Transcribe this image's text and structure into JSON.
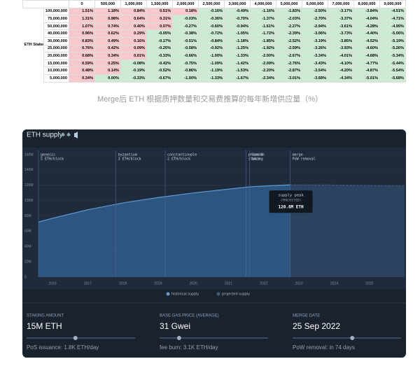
{
  "table": {
    "columns": [
      "0",
      "500,000",
      "1,000,000",
      "1,500,000",
      "2,000,000",
      "2,500,000",
      "3,000,000",
      "4,000,000",
      "5,000,000",
      "6,000,000",
      "7,000,000",
      "8,000,000",
      "9,000,000"
    ],
    "row_header": "ETH Staked",
    "rows": [
      {
        "label": "100,000,000",
        "cells": [
          "1.51%",
          "1.18%",
          "0.84%",
          "0.51%",
          "0.18%",
          "-0.16%",
          "-0.49%",
          "-1.16%",
          "-1.83%",
          "-2.50%",
          "-3.17%",
          "-3.84%",
          "-4.51%"
        ]
      },
      {
        "label": "75,000,000",
        "cells": [
          "1.31%",
          "0.98%",
          "0.64%",
          "0.31%",
          "-0.03%",
          "-0.36%",
          "-0.70%",
          "-1.37%",
          "-2.03%",
          "-2.70%",
          "-3.37%",
          "-4.04%",
          "-4.71%"
        ]
      },
      {
        "label": "50,000,000",
        "cells": [
          "1.07%",
          "0.74%",
          "0.40%",
          "0.07%",
          "-0.27%",
          "-0.60%",
          "-0.94%",
          "-1.61%",
          "-2.27%",
          "-2.94%",
          "-3.61%",
          "-4.28%",
          "-4.95%"
        ]
      },
      {
        "label": "40,000,000",
        "cells": [
          "0.96%",
          "0.62%",
          "0.29%",
          "-0.05%",
          "-0.38%",
          "-0.72%",
          "-1.05%",
          "-1.72%",
          "-2.39%",
          "-3.06%",
          "-3.73%",
          "-4.40%",
          "-5.06%"
        ]
      },
      {
        "label": "30,000,000",
        "cells": [
          "0.83%",
          "0.49%",
          "0.16%",
          "-0.17%",
          "-0.51%",
          "-0.84%",
          "-1.18%",
          "-1.85%",
          "-2.52%",
          "-3.19%",
          "-3.85%",
          "-4.52%",
          "-5.19%"
        ]
      },
      {
        "label": "25,000,000",
        "cells": [
          "0.76%",
          "0.42%",
          "0.09%",
          "-0.25%",
          "-0.58%",
          "-0.92%",
          "-1.25%",
          "-1.92%",
          "-2.59%",
          "-3.26%",
          "-3.93%",
          "-4.60%",
          "-5.26%"
        ]
      },
      {
        "label": "20,000,000",
        "cells": [
          "0.68%",
          "0.34%",
          "0.01%",
          "-0.33%",
          "-0.66%",
          "-1.00%",
          "-1.33%",
          "-2.00%",
          "-2.67%",
          "-3.34%",
          "-4.01%",
          "-4.68%",
          "-5.34%"
        ]
      },
      {
        "label": "15,000,000",
        "cells": [
          "0.59%",
          "0.25%",
          "-0.08%",
          "-0.42%",
          "-0.75%",
          "-1.09%",
          "-1.42%",
          "-2.09%",
          "-2.76%",
          "-3.43%",
          "-4.10%",
          "-4.77%",
          "-5.44%"
        ]
      },
      {
        "label": "10,000,000",
        "cells": [
          "0.48%",
          "0.14%",
          "-0.19%",
          "-0.52%",
          "-0.86%",
          "-1.19%",
          "-1.53%",
          "-2.20%",
          "-2.87%",
          "-3.54%",
          "-4.20%",
          "-4.87%",
          "-5.54%"
        ]
      },
      {
        "label": "5,000,000",
        "cells": [
          "0.34%",
          "0.00%",
          "-0.33%",
          "-0.67%",
          "-1.00%",
          "-1.33%",
          "-1.67%",
          "-2.34%",
          "-3.01%",
          "-3.68%",
          "-4.34%",
          "-5.01%",
          "-5.68%"
        ]
      }
    ]
  },
  "caption": "Merge后 ETH 根据质押数量和交易费推算的每年新增供应量（%）",
  "widget": {
    "title": "ETH supply",
    "controls": [
      {
        "label": "STAKING AMOUNT",
        "value": "15M ETH",
        "note": "PoS issuance: 1.8K ETH/day"
      },
      {
        "label": "BASE GAS PRICE (AVERAGE)",
        "value": "31 Gwei",
        "note": "fee burn: 3.1K ETH/day"
      },
      {
        "label": "MERGE DATE",
        "value": "25 Sep 2022",
        "note": "PoW removal: in 74 days"
      }
    ]
  },
  "chart_data": {
    "type": "area",
    "xlim": [
      2015.6,
      2026
    ],
    "xticks": [
      2016,
      2017,
      2018,
      2019,
      2020,
      2021,
      2022,
      2023,
      2024,
      2025
    ],
    "ylim": [
      0,
      160000000
    ],
    "yticks": [
      0,
      {
        "value": 20000000,
        "label": "20M"
      },
      {
        "value": 40000000,
        "label": "40M"
      },
      {
        "value": 60000000,
        "label": "60M"
      },
      {
        "value": 80000000,
        "label": "80M"
      },
      {
        "value": 100000000,
        "label": "100M"
      },
      {
        "value": 120000000,
        "label": "120M"
      },
      {
        "value": 140000000,
        "label": "140M"
      },
      {
        "value": 160000000,
        "label": "160M"
      }
    ],
    "grid": true,
    "legend": "bottom",
    "series": [
      {
        "name": "historical supply",
        "color": "#5b9bd8",
        "x": [
          2015.6,
          2016,
          2017,
          2018,
          2019,
          2020,
          2021,
          2021.6,
          2022,
          2022.75
        ],
        "values": [
          72000000,
          77000000,
          88000000,
          97000000,
          104000000,
          110000000,
          115000000,
          118000000,
          119000000,
          120600000
        ]
      },
      {
        "name": "projected supply",
        "color": "#3d5c80",
        "x": [
          2022.75,
          2024,
          2025,
          2026
        ],
        "values": [
          120600000,
          120300000,
          119800000,
          119300000
        ]
      }
    ],
    "events": [
      {
        "x": 2015.6,
        "label": "genesis",
        "sublabel": "5 ETH/block"
      },
      {
        "x": 2017.8,
        "label": "byzantium",
        "sublabel": "3 ETH/block"
      },
      {
        "x": 2019.2,
        "label": "constantinople",
        "sublabel": "2 ETH/block"
      },
      {
        "x": 2021.5,
        "label": "phase 0",
        "sublabel": "staking"
      },
      {
        "x": 2021.6,
        "label": "london",
        "sublabel": "burn"
      },
      {
        "x": 2022.75,
        "label": "merge",
        "sublabel": "PoW removal"
      }
    ],
    "tooltip": {
      "title": "supply peak",
      "subtitle": "(PROJECTED)",
      "value": "120.6M ETH"
    }
  }
}
